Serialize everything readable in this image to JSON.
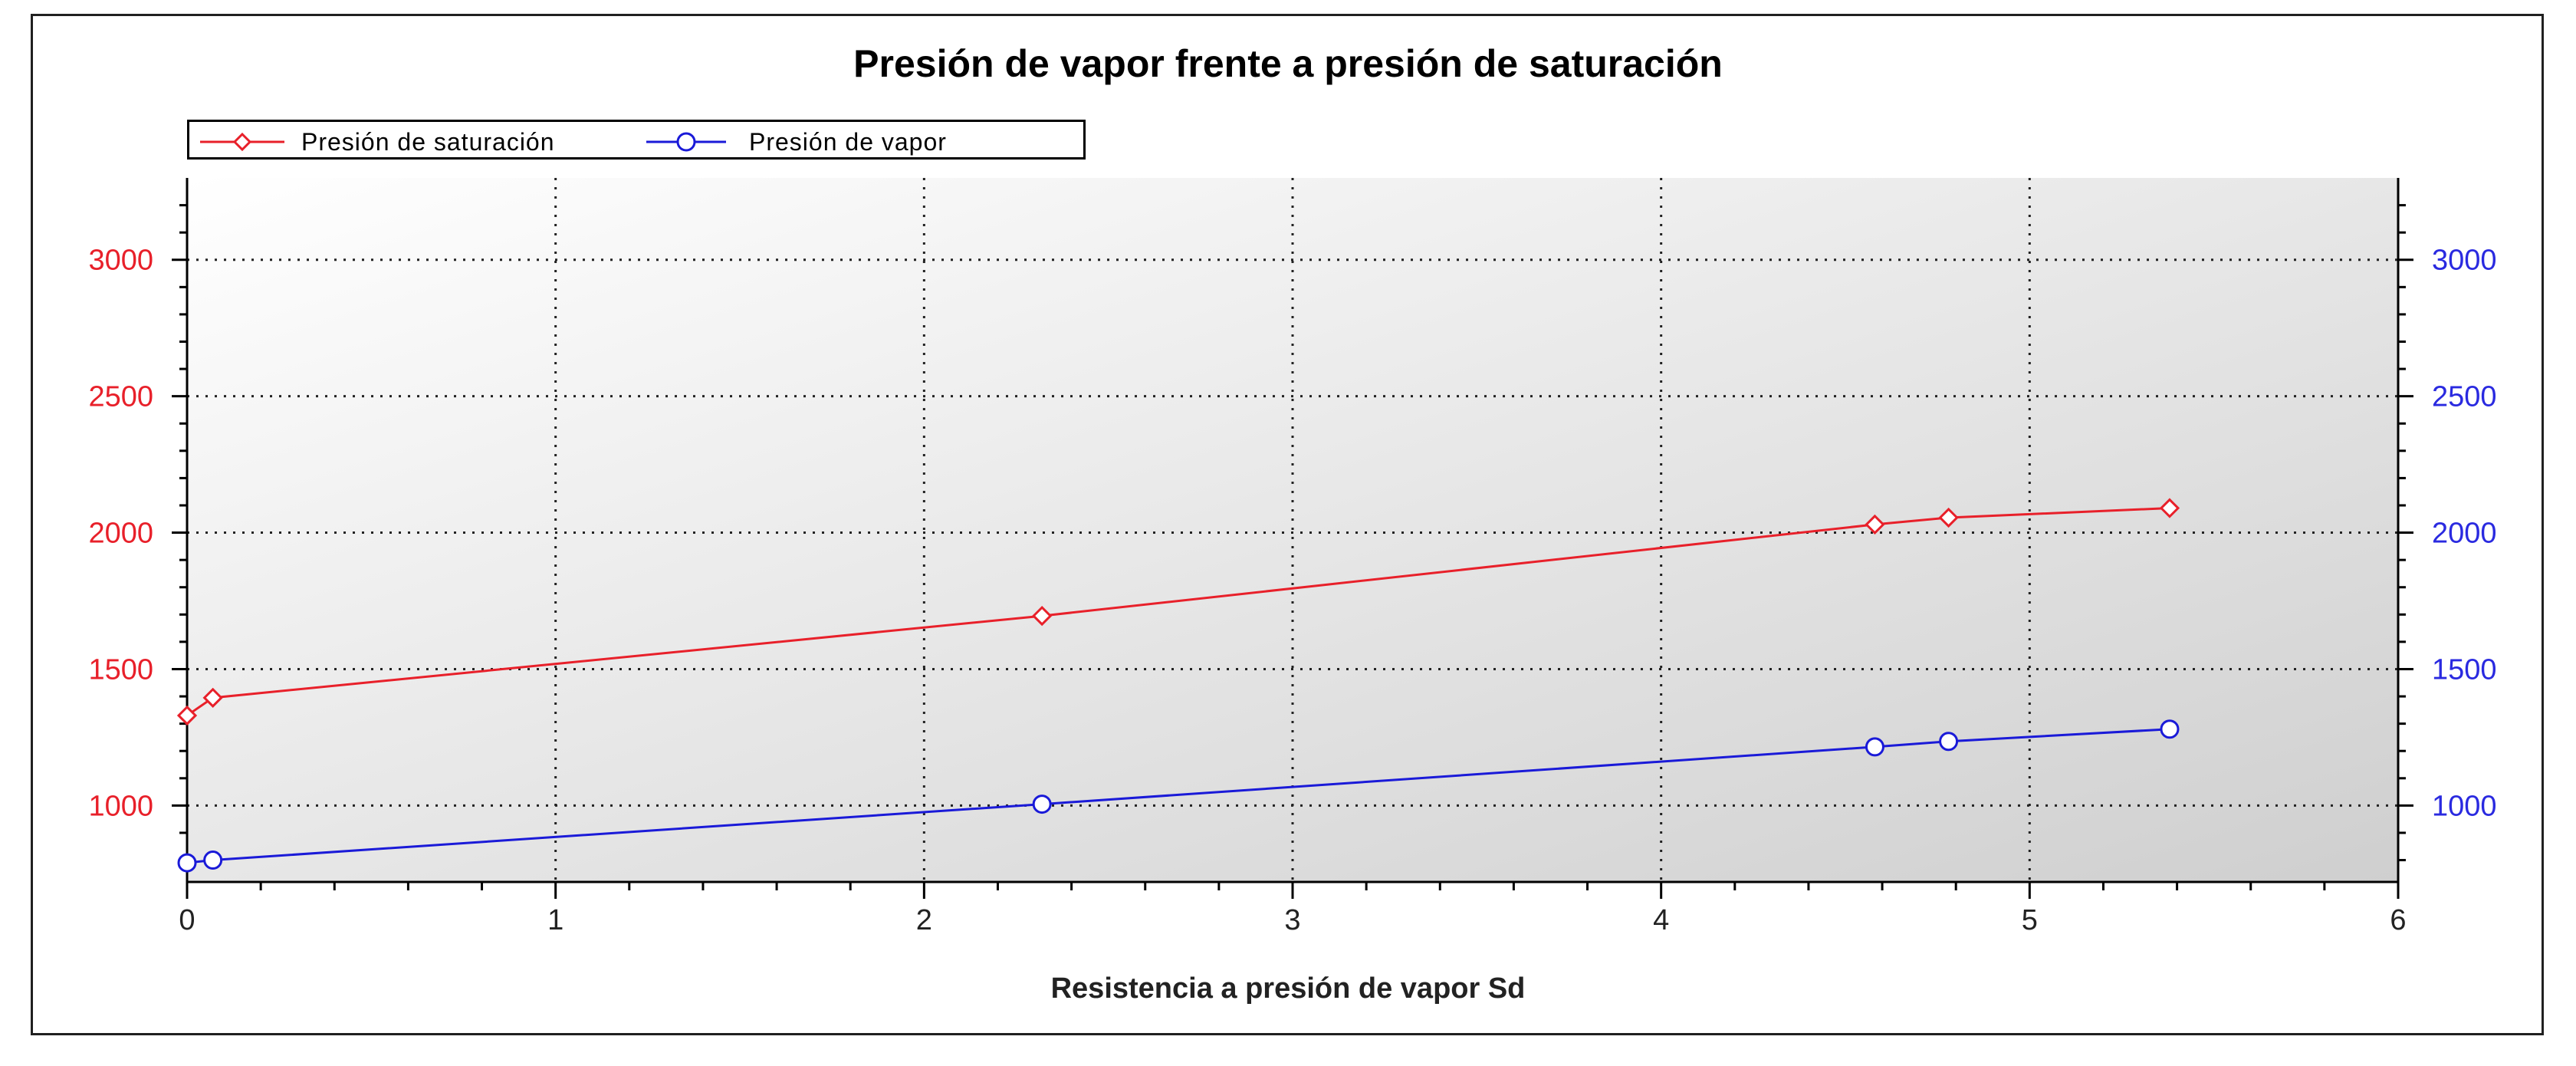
{
  "chart_data": {
    "type": "line",
    "title": "Presión de vapor frente a presión de saturación",
    "xlabel": "Resistencia a presión de vapor Sd",
    "ylabel": "",
    "xlim": [
      0,
      6
    ],
    "ylim": [
      720,
      3300
    ],
    "x_ticks": [
      "0",
      "1",
      "2",
      "3",
      "4",
      "5",
      "6"
    ],
    "y_ticks": [
      "1000",
      "1500",
      "2000",
      "2500",
      "3000"
    ],
    "grid": true,
    "legend_position": "top-left",
    "series": [
      {
        "name": "Presión de saturación",
        "color": "#e8202a",
        "marker": "diamond",
        "x": [
          0,
          0.07,
          2.32,
          4.58,
          4.78,
          5.38
        ],
        "y": [
          1330,
          1395,
          1695,
          2030,
          2055,
          2090
        ]
      },
      {
        "name": "Presión de vapor",
        "color": "#1a1ad8",
        "marker": "circle",
        "x": [
          0,
          0.07,
          2.32,
          4.58,
          4.78,
          5.38
        ],
        "y": [
          790,
          800,
          1005,
          1215,
          1235,
          1280
        ]
      }
    ],
    "left_axis_color": "#e8202a",
    "right_axis_color": "#2a2ae0"
  }
}
